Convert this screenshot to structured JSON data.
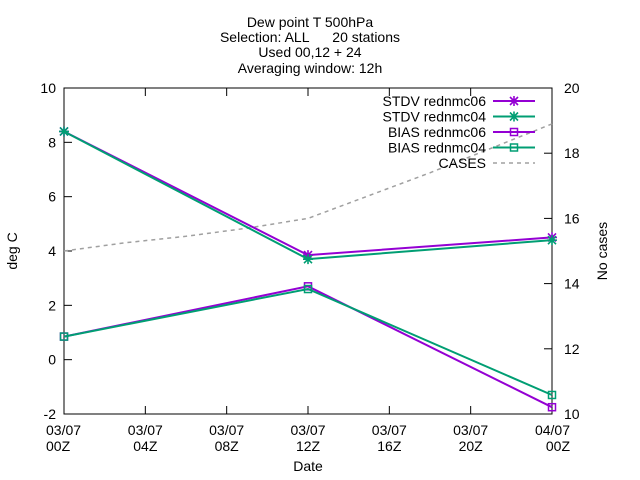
{
  "chart_data": {
    "type": "line",
    "title_lines": [
      "Dew point T 500hPa",
      "Selection: ALL      20 stations",
      "Used 00,12 + 24",
      "Averaging window: 12h"
    ],
    "xlabel": "Date",
    "ylabel": "deg C",
    "y2label": "No cases",
    "x_ticks": [
      {
        "x": 0,
        "line1": "03/07",
        "line2": "00Z"
      },
      {
        "x": 4,
        "line1": "03/07",
        "line2": "04Z"
      },
      {
        "x": 8,
        "line1": "03/07",
        "line2": "08Z"
      },
      {
        "x": 12,
        "line1": "03/07",
        "line2": "12Z"
      },
      {
        "x": 16,
        "line1": "03/07",
        "line2": "16Z"
      },
      {
        "x": 20,
        "line1": "03/07",
        "line2": "20Z"
      },
      {
        "x": 24,
        "line1": "04/07",
        "line2": "00Z"
      }
    ],
    "xlim": [
      0,
      24
    ],
    "ylim": [
      -2,
      10
    ],
    "y_ticks": [
      "-2",
      "0",
      "2",
      "4",
      "6",
      "8",
      "10"
    ],
    "y2lim": [
      10,
      20
    ],
    "y2_ticks": [
      "10",
      "12",
      "14",
      "16",
      "18",
      "20"
    ],
    "legend_position": "top-right",
    "series": [
      {
        "name": "STDV rednmc06",
        "axis": "y",
        "color": "#9400d3",
        "marker": "star",
        "dash": false,
        "points": [
          [
            0,
            8.4
          ],
          [
            12,
            3.85
          ],
          [
            24,
            4.5
          ]
        ]
      },
      {
        "name": "STDV rednmc04",
        "axis": "y",
        "color": "#009e73",
        "marker": "star",
        "dash": false,
        "points": [
          [
            0,
            8.4
          ],
          [
            12,
            3.7
          ],
          [
            24,
            4.4
          ]
        ]
      },
      {
        "name": "BIAS rednmc06",
        "axis": "y",
        "color": "#9400d3",
        "marker": "square",
        "dash": false,
        "points": [
          [
            0,
            0.85
          ],
          [
            12,
            2.7
          ],
          [
            24,
            -1.75
          ]
        ]
      },
      {
        "name": "BIAS rednmc04",
        "axis": "y",
        "color": "#009e73",
        "marker": "square",
        "dash": false,
        "points": [
          [
            0,
            0.85
          ],
          [
            12,
            2.6
          ],
          [
            24,
            -1.3
          ]
        ]
      },
      {
        "name": "CASES",
        "axis": "y2",
        "color": "#a0a0a0",
        "marker": "none",
        "dash": true,
        "points": [
          [
            0,
            15.0
          ],
          [
            3,
            15.25
          ],
          [
            6,
            15.45
          ],
          [
            9,
            15.7
          ],
          [
            12,
            16.0
          ],
          [
            15,
            16.7
          ],
          [
            18,
            17.4
          ],
          [
            21,
            18.15
          ],
          [
            24,
            18.9
          ]
        ]
      }
    ]
  }
}
